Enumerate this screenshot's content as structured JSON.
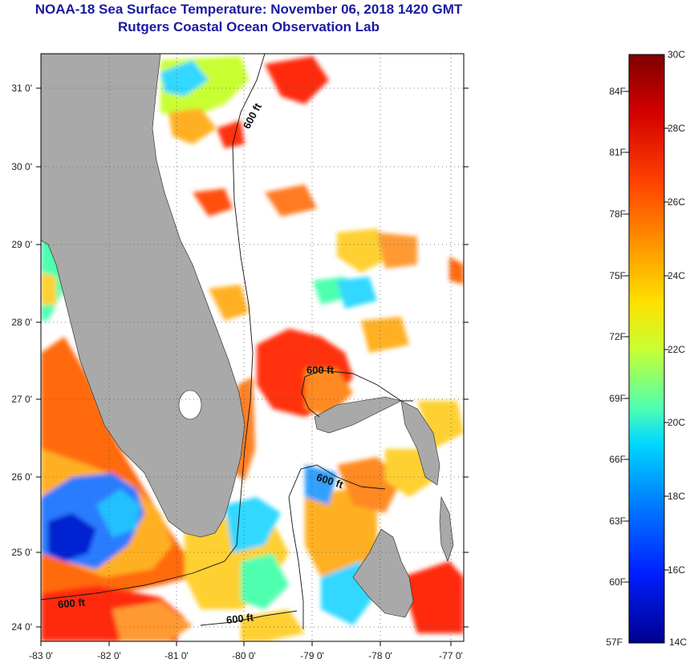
{
  "header": {
    "title": "NOAA-18 Sea Surface Temperature:  November 06, 2018 1420 GMT",
    "subtitle": "Rutgers Coastal Ocean Observation Lab"
  },
  "map": {
    "lon_ticks": [
      "-83 0'",
      "-82 0'",
      "-81 0'",
      "-80 0'",
      "-79 0'",
      "-78 0'",
      "-77 0'"
    ],
    "lat_ticks": [
      "31 0'",
      "30 0'",
      "29 0'",
      "28 0'",
      "27 0'",
      "26 0'",
      "25 0'",
      "24 0'"
    ],
    "contour_labels": [
      "600 ft",
      "600 ft",
      "600 ft",
      "600 ft",
      "600 ft"
    ],
    "land_color": "#a9a9a9"
  },
  "colorbar": {
    "celsius_labels": [
      "30C",
      "28C",
      "26C",
      "24C",
      "22C",
      "20C",
      "18C",
      "16C",
      "14C"
    ],
    "fahrenheit_labels": [
      "84F",
      "81F",
      "78F",
      "75F",
      "72F",
      "69F",
      "66F",
      "63F",
      "60F",
      "57F"
    ],
    "colors_top_to_bottom": [
      "#7f0000",
      "#d40000",
      "#ff4400",
      "#ff9a00",
      "#ffe000",
      "#c8ff30",
      "#50ffb0",
      "#00d8ff",
      "#0080ff",
      "#0020ff",
      "#00008f"
    ]
  }
}
